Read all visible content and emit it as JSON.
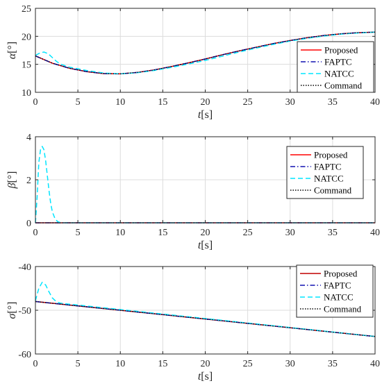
{
  "chart_data": [
    {
      "type": "line",
      "ylabel_symbol": "α",
      "ylabel_unit": "[°]",
      "xlabel_symbol": "t",
      "xlabel_unit": "[s]",
      "xlim": [
        0,
        40
      ],
      "ylim": [
        10,
        25
      ],
      "xticks": [
        0,
        5,
        10,
        15,
        20,
        25,
        30,
        35,
        40
      ],
      "yticks": [
        10,
        15,
        20,
        25
      ],
      "grid": true,
      "legend": "right",
      "series": [
        {
          "name": "Proposed",
          "color": "#ff0000",
          "dash": "solid",
          "x": [
            0,
            2,
            4,
            6,
            8,
            10,
            12,
            14,
            16,
            18,
            20,
            22,
            24,
            26,
            28,
            30,
            32,
            34,
            36,
            38,
            40
          ],
          "y": [
            16.5,
            15.2,
            14.3,
            13.7,
            13.35,
            13.3,
            13.55,
            14.0,
            14.6,
            15.25,
            15.95,
            16.7,
            17.4,
            18.05,
            18.7,
            19.25,
            19.75,
            20.15,
            20.45,
            20.65,
            20.75
          ]
        },
        {
          "name": "FAPTC",
          "color": "#1010b0",
          "dash": "dashdot",
          "x": [
            0,
            2,
            4,
            6,
            8,
            10,
            12,
            14,
            16,
            18,
            20,
            22,
            24,
            26,
            28,
            30,
            32,
            34,
            36,
            38,
            40
          ],
          "y": [
            16.5,
            15.2,
            14.3,
            13.7,
            13.35,
            13.3,
            13.55,
            14.0,
            14.6,
            15.25,
            15.95,
            16.7,
            17.4,
            18.05,
            18.7,
            19.25,
            19.75,
            20.15,
            20.45,
            20.65,
            20.75
          ]
        },
        {
          "name": "NATCC",
          "color": "#00e5ff",
          "dash": "dashed",
          "x": [
            0,
            0.5,
            1,
            1.5,
            2,
            2.5,
            3,
            4,
            6,
            8,
            10,
            12,
            14,
            16,
            18,
            20,
            22,
            24,
            26,
            28,
            30,
            32,
            34,
            36,
            38,
            40
          ],
          "y": [
            16.6,
            17.0,
            17.2,
            16.9,
            16.2,
            15.5,
            15.0,
            14.5,
            13.9,
            13.45,
            13.3,
            13.5,
            13.9,
            14.45,
            15.05,
            15.7,
            16.45,
            17.2,
            17.9,
            18.55,
            19.15,
            19.65,
            20.05,
            20.4,
            20.6,
            20.75
          ]
        },
        {
          "name": "Command",
          "color": "#000000",
          "dash": "dotted",
          "x": [
            0,
            2,
            4,
            6,
            8,
            10,
            12,
            14,
            16,
            18,
            20,
            22,
            24,
            26,
            28,
            30,
            32,
            34,
            36,
            38,
            40
          ],
          "y": [
            16.5,
            15.2,
            14.3,
            13.7,
            13.35,
            13.3,
            13.55,
            14.0,
            14.6,
            15.25,
            15.95,
            16.7,
            17.4,
            18.05,
            18.7,
            19.25,
            19.75,
            20.15,
            20.45,
            20.65,
            20.75
          ]
        }
      ]
    },
    {
      "type": "line",
      "ylabel_symbol": "β",
      "ylabel_unit": "[°]",
      "xlabel_symbol": "t",
      "xlabel_unit": "[s]",
      "xlim": [
        0,
        40
      ],
      "ylim": [
        0,
        4
      ],
      "xticks": [
        0,
        5,
        10,
        15,
        20,
        25,
        30,
        35,
        40
      ],
      "yticks": [
        0,
        2,
        4
      ],
      "grid": true,
      "legend": "top-right",
      "series": [
        {
          "name": "Proposed",
          "color": "#ff0000",
          "dash": "solid",
          "x": [
            0,
            40
          ],
          "y": [
            0,
            0
          ]
        },
        {
          "name": "FAPTC",
          "color": "#1010b0",
          "dash": "dashdot",
          "x": [
            0,
            40
          ],
          "y": [
            0,
            0
          ]
        },
        {
          "name": "NATCC",
          "color": "#00e5ff",
          "dash": "dashed",
          "x": [
            0,
            0.2,
            0.4,
            0.6,
            0.8,
            1.0,
            1.2,
            1.4,
            1.6,
            1.8,
            2.0,
            2.3,
            2.6,
            3.0,
            40
          ],
          "y": [
            0,
            1.2,
            2.8,
            3.4,
            3.55,
            3.4,
            2.9,
            2.2,
            1.5,
            0.9,
            0.5,
            0.2,
            0.06,
            0,
            0
          ]
        },
        {
          "name": "Command",
          "color": "#000000",
          "dash": "dotted",
          "x": [
            0,
            40
          ],
          "y": [
            0,
            0
          ]
        }
      ]
    },
    {
      "type": "line",
      "ylabel_symbol": "σ",
      "ylabel_unit": "[°]",
      "xlabel_symbol": "t",
      "xlabel_unit": "[s]",
      "xlim": [
        0,
        40
      ],
      "ylim": [
        -60,
        -40
      ],
      "xticks": [
        0,
        5,
        10,
        15,
        20,
        25,
        30,
        35,
        40
      ],
      "yticks": [
        -40,
        -50,
        -60
      ],
      "grid": true,
      "legend": "top-right",
      "series": [
        {
          "name": "Proposed",
          "color": "#c00000",
          "dash": "solid",
          "x": [
            0,
            40
          ],
          "y": [
            -48.0,
            -56.0
          ]
        },
        {
          "name": "FAPTC",
          "color": "#1010b0",
          "dash": "dashdot",
          "x": [
            0,
            40
          ],
          "y": [
            -48.0,
            -56.0
          ]
        },
        {
          "name": "NATCC",
          "color": "#00e5ff",
          "dash": "dashed",
          "x": [
            0,
            0.4,
            0.8,
            1.2,
            1.6,
            2.0,
            2.5,
            3.0,
            40
          ],
          "y": [
            -47.8,
            -45.0,
            -43.6,
            -44.2,
            -45.8,
            -47.2,
            -48.1,
            -48.4,
            -56.0
          ]
        },
        {
          "name": "Command",
          "color": "#000000",
          "dash": "dotted",
          "x": [
            0,
            40
          ],
          "y": [
            -48.0,
            -56.0
          ]
        }
      ]
    }
  ]
}
